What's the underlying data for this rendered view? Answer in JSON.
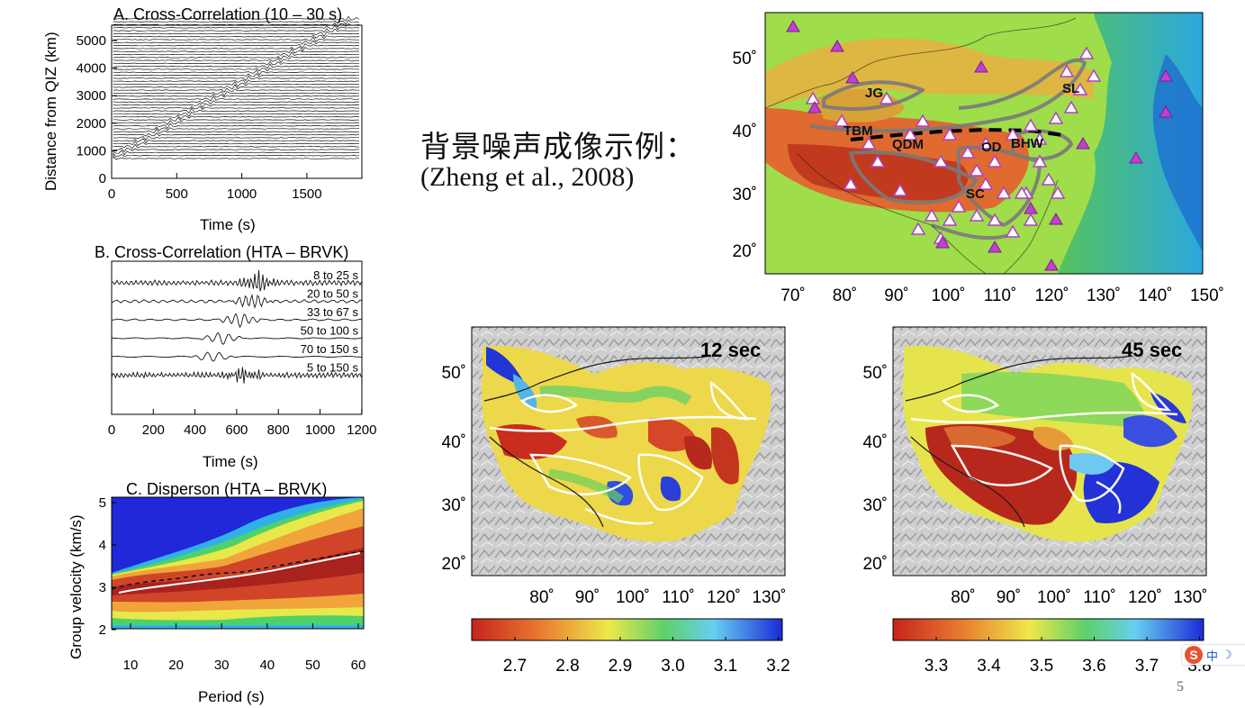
{
  "caption": {
    "title": "背景噪声成像示例：",
    "reference": "(Zheng et al., 2008)"
  },
  "page_number": "5",
  "panel_a": {
    "title": "A. Cross-Correlation (10 – 30 s)",
    "ylabel": "Distance from QIZ (km)",
    "xlabel": "Time (s)",
    "yticks": [
      "0",
      "1000",
      "2000",
      "3000",
      "4000",
      "5000"
    ],
    "xticks": [
      "0",
      "500",
      "1000",
      "1500"
    ]
  },
  "panel_b": {
    "title": "B. Cross-Correlation (HTA – BRVK)",
    "xlabel": "Time (s)",
    "xticks": [
      "0",
      "200",
      "400",
      "600",
      "800",
      "1000",
      "1200"
    ],
    "bands": [
      "8 to 25 s",
      "20 to 50 s",
      "33 to 67 s",
      "50 to 100 s",
      "70 to 150 s",
      "5 to 150 s"
    ]
  },
  "panel_c": {
    "title": "C. Disperson (HTA – BRVK)",
    "ylabel": "Group velocity (km/s)",
    "xlabel": "Period (s)",
    "yticks": [
      "2",
      "3",
      "4",
      "5"
    ],
    "xticks": [
      "10",
      "20",
      "30",
      "40",
      "50",
      "60"
    ]
  },
  "map_top": {
    "lat_ticks": [
      "50˚",
      "40˚",
      "30˚",
      "20˚"
    ],
    "lon_ticks": [
      "70˚",
      "80˚",
      "90˚",
      "100˚",
      "110˚",
      "120˚",
      "130˚",
      "140˚",
      "150˚"
    ],
    "regions": [
      "JG",
      "SL",
      "TBM",
      "QDM",
      "OD",
      "BHW",
      "SC"
    ]
  },
  "map_12": {
    "label": "12 sec",
    "lat_ticks": [
      "50˚",
      "40˚",
      "30˚",
      "20˚"
    ],
    "lon_ticks": [
      "80˚",
      "90˚",
      "100˚",
      "110˚",
      "120˚",
      "130˚"
    ],
    "colorbar_ticks": [
      "2.7",
      "2.8",
      "2.9",
      "3.0",
      "3.1",
      "3.2"
    ]
  },
  "map_45": {
    "label": "45 sec",
    "lat_ticks": [
      "50˚",
      "40˚",
      "30˚",
      "20˚"
    ],
    "lon_ticks": [
      "80˚",
      "90˚",
      "100˚",
      "110˚",
      "120˚",
      "130˚"
    ],
    "colorbar_ticks": [
      "3.3",
      "3.4",
      "3.5",
      "3.6",
      "3.7",
      "3.8"
    ]
  },
  "ime": {
    "logo": "S",
    "lang": "中"
  }
}
